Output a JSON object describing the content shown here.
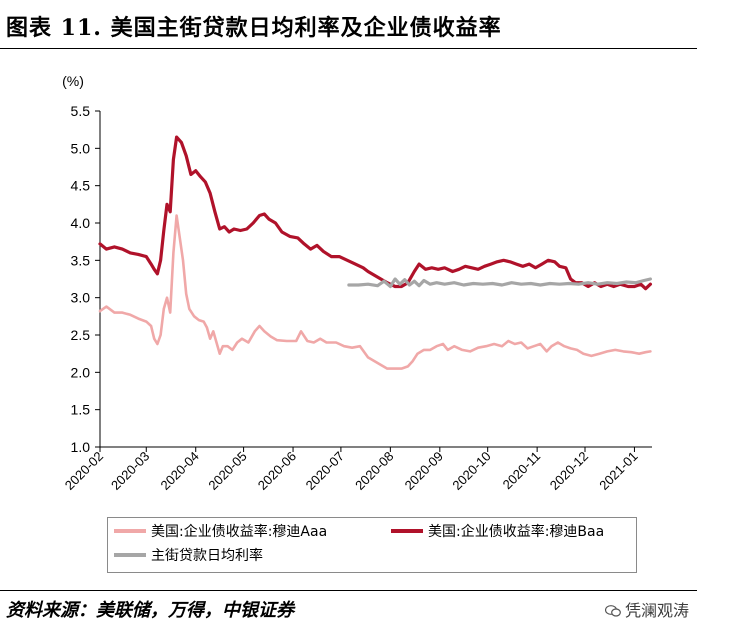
{
  "title": "图表 11. 美国主街贷款日均利率及企业债收益率",
  "source": "资料来源：美联储，万得，中银证券",
  "watermark": "凭澜观涛",
  "chart_data": {
    "type": "line",
    "title": "",
    "ylabel": "(%)",
    "ylim": [
      1.0,
      5.5
    ],
    "yticks": [
      "1.0",
      "1.5",
      "2.0",
      "2.5",
      "3.0",
      "3.5",
      "4.0",
      "4.5",
      "5.0",
      "5.5"
    ],
    "xlim": [
      "2020-02-01",
      "2021-01-12"
    ],
    "xticks": [
      "2020-02",
      "2020-03",
      "2020-04",
      "2020-05",
      "2020-06",
      "2020-07",
      "2020-08",
      "2020-09",
      "2020-10",
      "2020-11",
      "2020-12",
      "2021-01"
    ],
    "grid": false,
    "legend": "bottom",
    "series": [
      {
        "name": "美国:企业债收益率:穆迪Aaa",
        "color": "#f0a8a8",
        "points": [
          [
            "2020-02-01",
            2.82
          ],
          [
            "2020-02-05",
            2.88
          ],
          [
            "2020-02-10",
            2.8
          ],
          [
            "2020-02-15",
            2.8
          ],
          [
            "2020-02-20",
            2.77
          ],
          [
            "2020-02-25",
            2.72
          ],
          [
            "2020-03-01",
            2.68
          ],
          [
            "2020-03-04",
            2.62
          ],
          [
            "2020-03-06",
            2.45
          ],
          [
            "2020-03-08",
            2.38
          ],
          [
            "2020-03-10",
            2.5
          ],
          [
            "2020-03-12",
            2.85
          ],
          [
            "2020-03-14",
            3.0
          ],
          [
            "2020-03-16",
            2.8
          ],
          [
            "2020-03-18",
            3.6
          ],
          [
            "2020-03-20",
            4.1
          ],
          [
            "2020-03-22",
            3.8
          ],
          [
            "2020-03-24",
            3.5
          ],
          [
            "2020-03-26",
            3.05
          ],
          [
            "2020-03-28",
            2.85
          ],
          [
            "2020-03-31",
            2.75
          ],
          [
            "2020-04-03",
            2.7
          ],
          [
            "2020-04-06",
            2.68
          ],
          [
            "2020-04-08",
            2.6
          ],
          [
            "2020-04-10",
            2.45
          ],
          [
            "2020-04-12",
            2.55
          ],
          [
            "2020-04-14",
            2.4
          ],
          [
            "2020-04-16",
            2.25
          ],
          [
            "2020-04-18",
            2.35
          ],
          [
            "2020-04-21",
            2.35
          ],
          [
            "2020-04-24",
            2.3
          ],
          [
            "2020-04-27",
            2.4
          ],
          [
            "2020-04-30",
            2.45
          ],
          [
            "2020-05-04",
            2.4
          ],
          [
            "2020-05-08",
            2.55
          ],
          [
            "2020-05-11",
            2.62
          ],
          [
            "2020-05-14",
            2.55
          ],
          [
            "2020-05-18",
            2.48
          ],
          [
            "2020-05-22",
            2.43
          ],
          [
            "2020-05-28",
            2.42
          ],
          [
            "2020-06-03",
            2.42
          ],
          [
            "2020-06-06",
            2.55
          ],
          [
            "2020-06-10",
            2.42
          ],
          [
            "2020-06-14",
            2.4
          ],
          [
            "2020-06-18",
            2.45
          ],
          [
            "2020-06-22",
            2.4
          ],
          [
            "2020-06-28",
            2.4
          ],
          [
            "2020-07-03",
            2.35
          ],
          [
            "2020-07-08",
            2.33
          ],
          [
            "2020-07-13",
            2.35
          ],
          [
            "2020-07-18",
            2.2
          ],
          [
            "2020-07-22",
            2.15
          ],
          [
            "2020-07-26",
            2.1
          ],
          [
            "2020-07-30",
            2.05
          ],
          [
            "2020-08-04",
            2.05
          ],
          [
            "2020-08-08",
            2.05
          ],
          [
            "2020-08-12",
            2.08
          ],
          [
            "2020-08-15",
            2.15
          ],
          [
            "2020-08-18",
            2.25
          ],
          [
            "2020-08-22",
            2.3
          ],
          [
            "2020-08-26",
            2.3
          ],
          [
            "2020-08-30",
            2.35
          ],
          [
            "2020-09-03",
            2.38
          ],
          [
            "2020-09-06",
            2.3
          ],
          [
            "2020-09-10",
            2.35
          ],
          [
            "2020-09-15",
            2.3
          ],
          [
            "2020-09-20",
            2.28
          ],
          [
            "2020-09-25",
            2.33
          ],
          [
            "2020-09-30",
            2.35
          ],
          [
            "2020-10-05",
            2.38
          ],
          [
            "2020-10-10",
            2.35
          ],
          [
            "2020-10-14",
            2.42
          ],
          [
            "2020-10-18",
            2.38
          ],
          [
            "2020-10-22",
            2.4
          ],
          [
            "2020-10-26",
            2.32
          ],
          [
            "2020-10-30",
            2.35
          ],
          [
            "2020-11-03",
            2.38
          ],
          [
            "2020-11-07",
            2.28
          ],
          [
            "2020-11-10",
            2.35
          ],
          [
            "2020-11-14",
            2.4
          ],
          [
            "2020-11-18",
            2.35
          ],
          [
            "2020-11-22",
            2.32
          ],
          [
            "2020-11-26",
            2.3
          ],
          [
            "2020-11-30",
            2.25
          ],
          [
            "2020-12-05",
            2.22
          ],
          [
            "2020-12-10",
            2.25
          ],
          [
            "2020-12-15",
            2.28
          ],
          [
            "2020-12-20",
            2.3
          ],
          [
            "2020-12-25",
            2.28
          ],
          [
            "2020-12-30",
            2.27
          ],
          [
            "2021-01-04",
            2.25
          ],
          [
            "2021-01-08",
            2.27
          ],
          [
            "2021-01-11",
            2.28
          ]
        ]
      },
      {
        "name": "美国:企业债收益率:穆迪Baa",
        "color": "#b0122a",
        "points": [
          [
            "2020-02-01",
            3.72
          ],
          [
            "2020-02-05",
            3.65
          ],
          [
            "2020-02-10",
            3.68
          ],
          [
            "2020-02-15",
            3.65
          ],
          [
            "2020-02-20",
            3.6
          ],
          [
            "2020-02-25",
            3.58
          ],
          [
            "2020-03-01",
            3.55
          ],
          [
            "2020-03-04",
            3.45
          ],
          [
            "2020-03-06",
            3.38
          ],
          [
            "2020-03-08",
            3.32
          ],
          [
            "2020-03-10",
            3.5
          ],
          [
            "2020-03-12",
            3.9
          ],
          [
            "2020-03-14",
            4.25
          ],
          [
            "2020-03-16",
            4.15
          ],
          [
            "2020-03-18",
            4.85
          ],
          [
            "2020-03-20",
            5.15
          ],
          [
            "2020-03-23",
            5.08
          ],
          [
            "2020-03-26",
            4.9
          ],
          [
            "2020-03-29",
            4.65
          ],
          [
            "2020-04-01",
            4.7
          ],
          [
            "2020-04-04",
            4.62
          ],
          [
            "2020-04-07",
            4.55
          ],
          [
            "2020-04-10",
            4.4
          ],
          [
            "2020-04-13",
            4.15
          ],
          [
            "2020-04-16",
            3.92
          ],
          [
            "2020-04-19",
            3.95
          ],
          [
            "2020-04-22",
            3.88
          ],
          [
            "2020-04-25",
            3.92
          ],
          [
            "2020-04-29",
            3.9
          ],
          [
            "2020-05-03",
            3.92
          ],
          [
            "2020-05-07",
            4.0
          ],
          [
            "2020-05-11",
            4.1
          ],
          [
            "2020-05-14",
            4.12
          ],
          [
            "2020-05-17",
            4.05
          ],
          [
            "2020-05-21",
            4.0
          ],
          [
            "2020-05-25",
            3.88
          ],
          [
            "2020-05-30",
            3.82
          ],
          [
            "2020-06-04",
            3.8
          ],
          [
            "2020-06-08",
            3.72
          ],
          [
            "2020-06-12",
            3.65
          ],
          [
            "2020-06-16",
            3.7
          ],
          [
            "2020-06-20",
            3.62
          ],
          [
            "2020-06-25",
            3.55
          ],
          [
            "2020-06-30",
            3.55
          ],
          [
            "2020-07-05",
            3.5
          ],
          [
            "2020-07-10",
            3.45
          ],
          [
            "2020-07-15",
            3.4
          ],
          [
            "2020-07-18",
            3.35
          ],
          [
            "2020-07-22",
            3.3
          ],
          [
            "2020-07-26",
            3.25
          ],
          [
            "2020-07-30",
            3.2
          ],
          [
            "2020-08-04",
            3.15
          ],
          [
            "2020-08-08",
            3.15
          ],
          [
            "2020-08-12",
            3.2
          ],
          [
            "2020-08-16",
            3.35
          ],
          [
            "2020-08-19",
            3.45
          ],
          [
            "2020-08-23",
            3.38
          ],
          [
            "2020-08-27",
            3.4
          ],
          [
            "2020-08-31",
            3.38
          ],
          [
            "2020-09-04",
            3.4
          ],
          [
            "2020-09-09",
            3.35
          ],
          [
            "2020-09-13",
            3.38
          ],
          [
            "2020-09-17",
            3.42
          ],
          [
            "2020-09-21",
            3.4
          ],
          [
            "2020-09-25",
            3.38
          ],
          [
            "2020-09-29",
            3.42
          ],
          [
            "2020-10-03",
            3.45
          ],
          [
            "2020-10-07",
            3.48
          ],
          [
            "2020-10-11",
            3.5
          ],
          [
            "2020-10-15",
            3.48
          ],
          [
            "2020-10-19",
            3.45
          ],
          [
            "2020-10-23",
            3.42
          ],
          [
            "2020-10-27",
            3.45
          ],
          [
            "2020-10-31",
            3.4
          ],
          [
            "2020-11-04",
            3.45
          ],
          [
            "2020-11-08",
            3.5
          ],
          [
            "2020-11-12",
            3.48
          ],
          [
            "2020-11-15",
            3.42
          ],
          [
            "2020-11-19",
            3.4
          ],
          [
            "2020-11-22",
            3.25
          ],
          [
            "2020-11-25",
            3.2
          ],
          [
            "2020-11-29",
            3.2
          ],
          [
            "2020-12-03",
            3.15
          ],
          [
            "2020-12-07",
            3.2
          ],
          [
            "2020-12-11",
            3.15
          ],
          [
            "2020-12-15",
            3.18
          ],
          [
            "2020-12-19",
            3.15
          ],
          [
            "2020-12-23",
            3.18
          ],
          [
            "2020-12-28",
            3.15
          ],
          [
            "2021-01-01",
            3.15
          ],
          [
            "2021-01-05",
            3.18
          ],
          [
            "2021-01-08",
            3.12
          ],
          [
            "2021-01-11",
            3.18
          ]
        ]
      },
      {
        "name": "主街贷款日均利率",
        "color": "#a6a6a6",
        "points": [
          [
            "2020-07-06",
            3.17
          ],
          [
            "2020-07-12",
            3.17
          ],
          [
            "2020-07-18",
            3.18
          ],
          [
            "2020-07-24",
            3.16
          ],
          [
            "2020-07-28",
            3.22
          ],
          [
            "2020-08-01",
            3.15
          ],
          [
            "2020-08-04",
            3.25
          ],
          [
            "2020-08-07",
            3.18
          ],
          [
            "2020-08-10",
            3.24
          ],
          [
            "2020-08-13",
            3.17
          ],
          [
            "2020-08-16",
            3.22
          ],
          [
            "2020-08-19",
            3.16
          ],
          [
            "2020-08-22",
            3.23
          ],
          [
            "2020-08-26",
            3.18
          ],
          [
            "2020-08-30",
            3.2
          ],
          [
            "2020-09-04",
            3.18
          ],
          [
            "2020-09-10",
            3.2
          ],
          [
            "2020-09-16",
            3.17
          ],
          [
            "2020-09-22",
            3.19
          ],
          [
            "2020-09-28",
            3.18
          ],
          [
            "2020-10-04",
            3.19
          ],
          [
            "2020-10-10",
            3.17
          ],
          [
            "2020-10-16",
            3.2
          ],
          [
            "2020-10-22",
            3.18
          ],
          [
            "2020-10-28",
            3.19
          ],
          [
            "2020-11-03",
            3.17
          ],
          [
            "2020-11-09",
            3.19
          ],
          [
            "2020-11-15",
            3.18
          ],
          [
            "2020-11-21",
            3.19
          ],
          [
            "2020-11-27",
            3.18
          ],
          [
            "2020-12-03",
            3.2
          ],
          [
            "2020-12-09",
            3.18
          ],
          [
            "2020-12-15",
            3.2
          ],
          [
            "2020-12-21",
            3.19
          ],
          [
            "2020-12-27",
            3.21
          ],
          [
            "2021-01-02",
            3.2
          ],
          [
            "2021-01-07",
            3.23
          ],
          [
            "2021-01-11",
            3.25
          ]
        ]
      }
    ]
  }
}
